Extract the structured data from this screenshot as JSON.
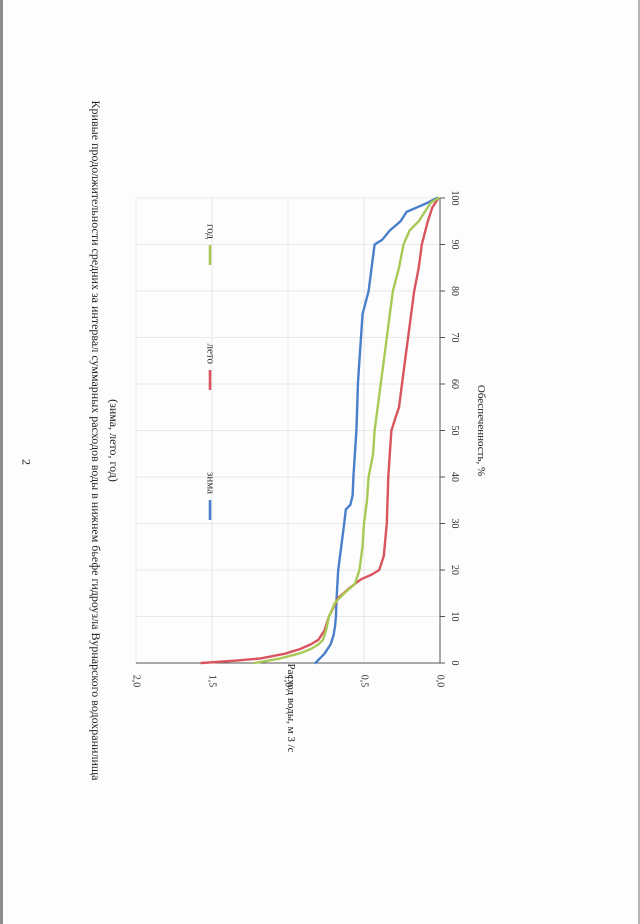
{
  "page_number": "2",
  "chart_data": {
    "type": "line",
    "title": "Кривые продолжительности средних за интервал суммарных расходов воды в нижнем бьефе гидроузла Вурнарского водохранилища",
    "subtitle": "(зима, лето, год)",
    "xlabel": "Обеспеченность, %",
    "ylabel": "Расход воды, м 3 /с",
    "xlim": [
      0,
      100
    ],
    "ylim": [
      0,
      2.0
    ],
    "x_ticks": [
      "0",
      "10",
      "20",
      "30",
      "40",
      "50",
      "60",
      "70",
      "80",
      "90",
      "100"
    ],
    "y_ticks": [
      "0,0",
      "0,5",
      "1,0",
      "1,5",
      "2,0"
    ],
    "grid": true,
    "legend": "inside, along the top",
    "series": [
      {
        "name": "зима",
        "color": "#4a7fcc",
        "points": [
          [
            0,
            0.82
          ],
          [
            2,
            0.76
          ],
          [
            4,
            0.72
          ],
          [
            6,
            0.7
          ],
          [
            8,
            0.69
          ],
          [
            10,
            0.685
          ],
          [
            14,
            0.68
          ],
          [
            20,
            0.67
          ],
          [
            25,
            0.65
          ],
          [
            30,
            0.63
          ],
          [
            33,
            0.62
          ],
          [
            34,
            0.59
          ],
          [
            36,
            0.575
          ],
          [
            40,
            0.57
          ],
          [
            45,
            0.56
          ],
          [
            50,
            0.55
          ],
          [
            55,
            0.545
          ],
          [
            60,
            0.54
          ],
          [
            65,
            0.53
          ],
          [
            70,
            0.52
          ],
          [
            75,
            0.51
          ],
          [
            80,
            0.47
          ],
          [
            85,
            0.45
          ],
          [
            90,
            0.43
          ],
          [
            91,
            0.38
          ],
          [
            93,
            0.33
          ],
          [
            95,
            0.26
          ],
          [
            97,
            0.22
          ],
          [
            98,
            0.15
          ],
          [
            99,
            0.08
          ],
          [
            100,
            0.02
          ]
        ]
      },
      {
        "name": "лето",
        "color": "#d9545f",
        "points": [
          [
            0,
            1.57
          ],
          [
            0.5,
            1.35
          ],
          [
            1,
            1.18
          ],
          [
            2,
            1.02
          ],
          [
            3,
            0.92
          ],
          [
            4,
            0.85
          ],
          [
            5,
            0.8
          ],
          [
            6,
            0.78
          ],
          [
            7,
            0.76
          ],
          [
            8,
            0.75
          ],
          [
            10,
            0.73
          ],
          [
            12,
            0.7
          ],
          [
            14,
            0.67
          ],
          [
            16,
            0.6
          ],
          [
            18,
            0.52
          ],
          [
            19,
            0.45
          ],
          [
            20,
            0.4
          ],
          [
            23,
            0.37
          ],
          [
            30,
            0.35
          ],
          [
            40,
            0.34
          ],
          [
            45,
            0.33
          ],
          [
            50,
            0.32
          ],
          [
            53,
            0.29
          ],
          [
            55,
            0.27
          ],
          [
            60,
            0.25
          ],
          [
            65,
            0.23
          ],
          [
            70,
            0.21
          ],
          [
            75,
            0.19
          ],
          [
            80,
            0.17
          ],
          [
            85,
            0.14
          ],
          [
            90,
            0.12
          ],
          [
            95,
            0.08
          ],
          [
            98,
            0.05
          ],
          [
            100,
            0.01
          ]
        ]
      },
      {
        "name": "год",
        "color": "#a7c955",
        "points": [
          [
            0,
            1.22
          ],
          [
            1,
            1.05
          ],
          [
            2,
            0.93
          ],
          [
            3,
            0.85
          ],
          [
            4,
            0.8
          ],
          [
            5,
            0.77
          ],
          [
            7,
            0.75
          ],
          [
            10,
            0.73
          ],
          [
            13,
            0.69
          ],
          [
            15,
            0.63
          ],
          [
            17,
            0.56
          ],
          [
            20,
            0.53
          ],
          [
            25,
            0.51
          ],
          [
            30,
            0.5
          ],
          [
            35,
            0.48
          ],
          [
            40,
            0.47
          ],
          [
            45,
            0.44
          ],
          [
            50,
            0.43
          ],
          [
            55,
            0.41
          ],
          [
            60,
            0.39
          ],
          [
            65,
            0.37
          ],
          [
            70,
            0.35
          ],
          [
            75,
            0.33
          ],
          [
            80,
            0.31
          ],
          [
            85,
            0.27
          ],
          [
            90,
            0.24
          ],
          [
            93,
            0.2
          ],
          [
            95,
            0.14
          ],
          [
            97,
            0.1
          ],
          [
            99,
            0.06
          ],
          [
            100,
            0.01
          ]
        ]
      }
    ]
  }
}
